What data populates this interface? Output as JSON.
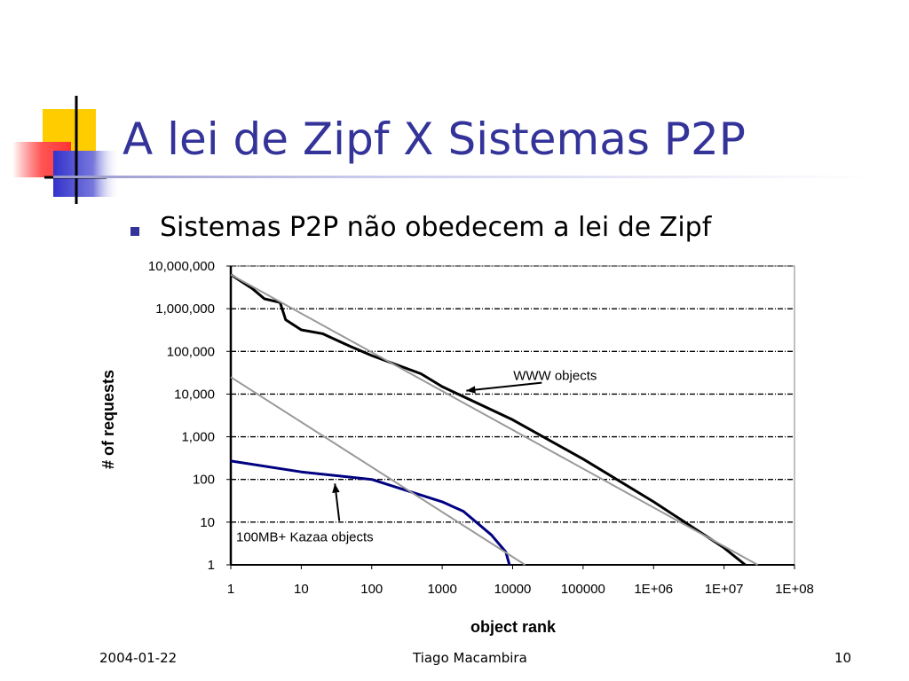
{
  "slide": {
    "title": "A lei de Zipf X Sistemas P2P",
    "bullet": "Sistemas P2P não obedecem a lei de Zipf",
    "footer": {
      "date": "2004-01-22",
      "author": "Tiago Macambira",
      "page": "10"
    },
    "colors": {
      "title": "#333399",
      "bullet": "#333399",
      "logo_yellow": "#ffcc00",
      "logo_blue": "#3333cc",
      "logo_red": "#ff3333"
    }
  },
  "chart_data": {
    "type": "line",
    "title": "",
    "xlabel": "object rank",
    "ylabel": "# of requests",
    "x_scale": "log",
    "y_scale": "log",
    "xlim": [
      1,
      100000000
    ],
    "ylim": [
      1,
      10000000
    ],
    "x_ticks": [
      1,
      10,
      100,
      1000,
      10000,
      100000,
      1000000,
      10000000,
      100000000
    ],
    "x_tick_labels": [
      "1",
      "10",
      "100",
      "1000",
      "10000",
      "100000",
      "1E+06",
      "1E+07",
      "1E+08"
    ],
    "y_ticks": [
      1,
      10,
      100,
      1000,
      10000,
      100000,
      1000000,
      10000000
    ],
    "y_tick_labels": [
      "1",
      "10",
      "100",
      "1,000",
      "10,000",
      "100,000",
      "1,000,000",
      "10,000,000"
    ],
    "grid": "horizontal dashed",
    "series": [
      {
        "color": "#000000",
        "points": [
          [
            1,
            6300000
          ],
          [
            2,
            3000000
          ],
          [
            3,
            1700000
          ],
          [
            5,
            1400000
          ],
          [
            6,
            550000
          ],
          [
            10,
            320000
          ],
          [
            20,
            260000
          ],
          [
            50,
            130000
          ],
          [
            100,
            80000
          ],
          [
            500,
            30000
          ],
          [
            1000,
            15000
          ],
          [
            10000,
            2500
          ],
          [
            100000,
            300
          ],
          [
            1000000,
            30
          ],
          [
            10000000,
            2.5
          ],
          [
            20000000,
            1
          ]
        ]
      },
      {
        "color": "#999999",
        "points": [
          [
            1,
            6300000
          ],
          [
            30000000,
            1
          ]
        ]
      },
      {
        "color": "#000080",
        "points": [
          [
            1,
            270
          ],
          [
            10,
            150
          ],
          [
            100,
            100
          ],
          [
            1000,
            30
          ],
          [
            2000,
            18
          ],
          [
            5000,
            5
          ],
          [
            8000,
            2
          ],
          [
            9000,
            1
          ]
        ]
      },
      {
        "color": "#999999",
        "points": [
          [
            1,
            25000
          ],
          [
            15000,
            1
          ]
        ]
      }
    ],
    "annotations": [
      {
        "text": "WWW objects",
        "x": 2200,
        "y": 12000,
        "label_x": 40000,
        "label_y": 27000
      },
      {
        "text": "100MB+ Kazaa objects",
        "x": 30,
        "y": 80,
        "label_x": 30,
        "label_y": 4.5
      }
    ]
  }
}
